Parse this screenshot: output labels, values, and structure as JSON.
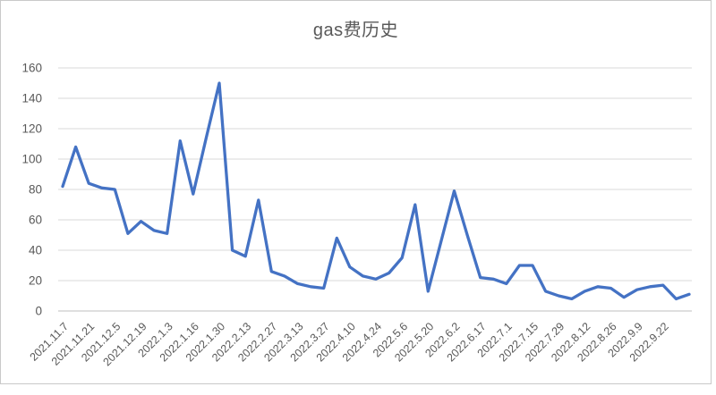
{
  "window": {
    "background": "#ffffff",
    "border_color": "#c9c9c9"
  },
  "chart_data": {
    "type": "line",
    "title": "gas费历史",
    "xlabel": "",
    "ylabel": "",
    "categories": [
      "2021.11.7",
      "2021.11.21",
      "2021.12.5",
      "2021.12.19",
      "2022.1.3",
      "2022.1.16",
      "2022.1.30",
      "2022.2.13",
      "2022.2.27",
      "2022.3.13",
      "2022.3.27",
      "2022.4.10",
      "2022.4.24",
      "2022.5.6",
      "2022.5.20",
      "2022.6.2",
      "2022.6.17",
      "2022.7.1",
      "2022.7.15",
      "2022.7.29",
      "2022.8.12",
      "2022.8.26",
      "2022.9.9",
      "2022.9.22"
    ],
    "label_every_n_points": 2,
    "values": [
      82,
      108,
      84,
      81,
      80,
      51,
      59,
      53,
      51,
      112,
      77,
      114,
      150,
      40,
      36,
      73,
      26,
      23,
      18,
      16,
      15,
      48,
      29,
      23,
      21,
      25,
      35,
      70,
      13,
      46,
      79,
      50,
      22,
      21,
      18,
      30,
      30,
      13,
      10,
      8,
      13,
      16,
      15,
      9,
      14,
      16,
      17,
      8,
      11
    ],
    "ylim": [
      0,
      160
    ],
    "ytick_step": 20,
    "yticks": [
      0,
      20,
      40,
      60,
      80,
      100,
      120,
      140,
      160
    ],
    "grid": "horizontal",
    "legend": "none",
    "line_color": "#4472C4",
    "gridline_color": "#D9D9D9",
    "axis_line_color": "#BFBFBF",
    "axis_label_color": "#595959",
    "title_color": "#595959"
  }
}
